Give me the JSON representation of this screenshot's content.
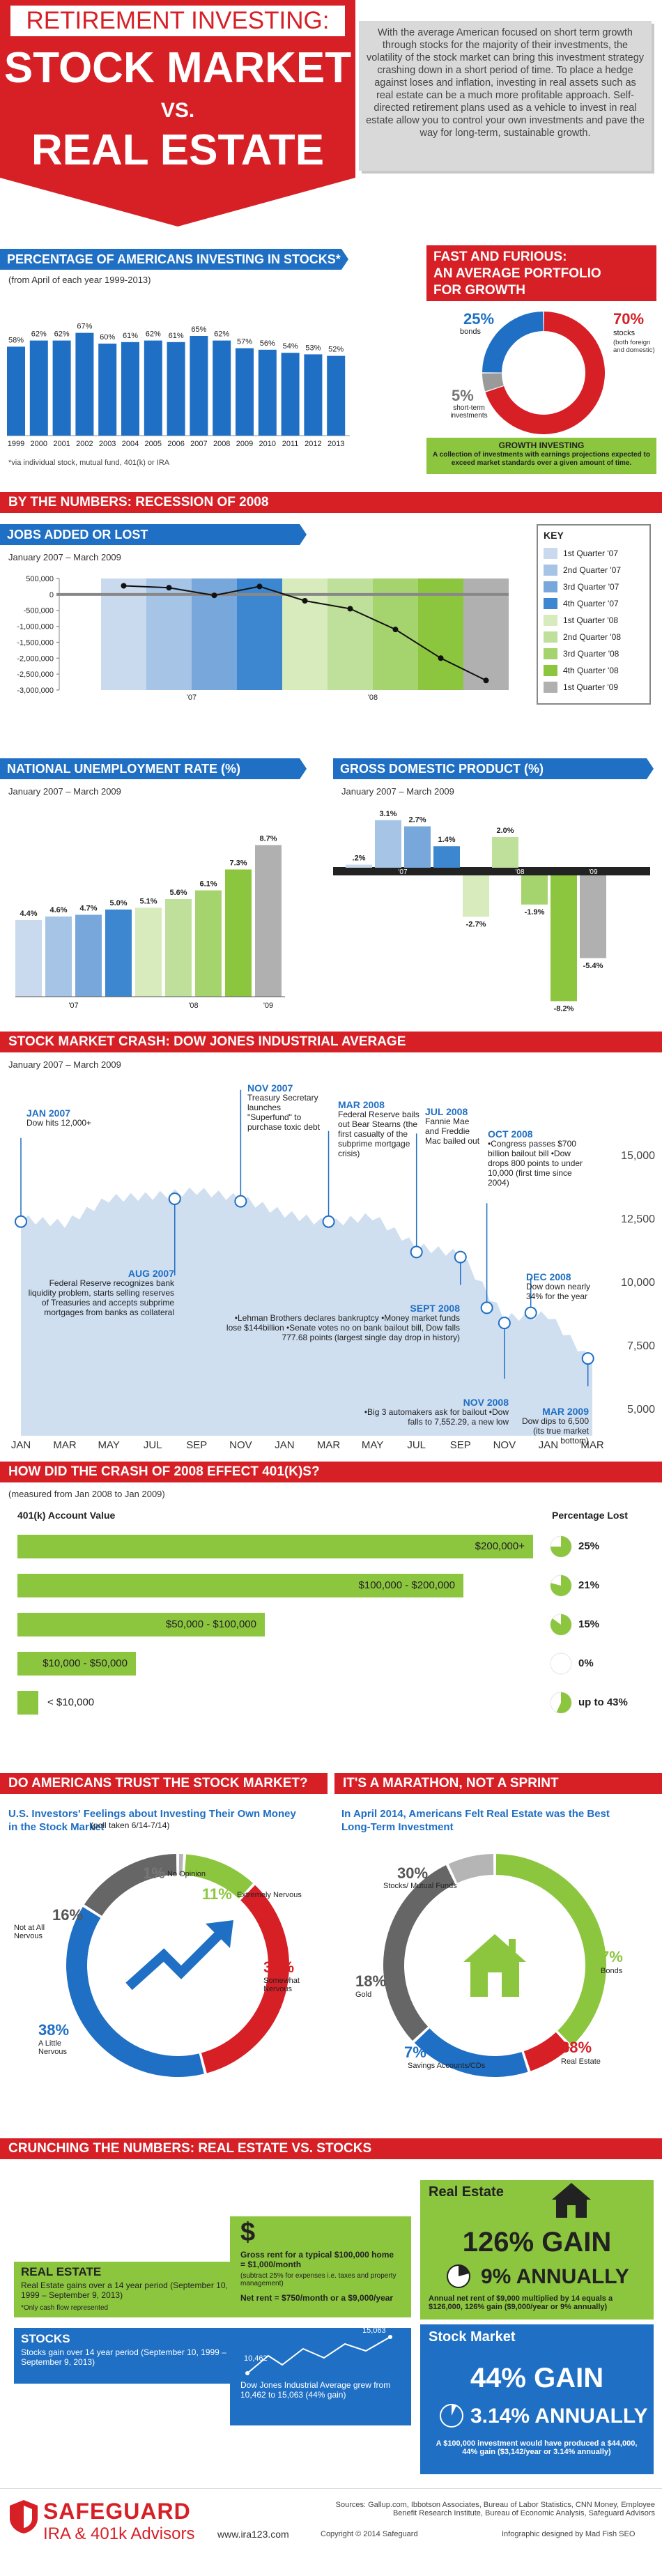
{
  "header": {
    "kicker": "RETIREMENT INVESTING:",
    "title1": "STOCK MARKET",
    "vs": "VS.",
    "title2": "REAL ESTATE",
    "intro": "With the average American focused on short term growth through stocks for the majority of their investments, the volatility of the stock market can bring this investment strategy crashing down in a short period of time. To place a hedge against loses and inflation, investing in real assets such as real estate can be a much more profitable approach. Self-directed retirement plans used as a vehicle to invest in real estate allow you to control your own investments and pave the way for long-term, sustainable growth."
  },
  "colors": {
    "red": "#d71f26",
    "blue": "#1f6fc4",
    "green": "#8cc63f",
    "grey": "#7f7f7f"
  },
  "pct_invest": {
    "title": "PERCENTAGE OF AMERICANS INVESTING IN STOCKS*",
    "note": "(from April of each year 1999-2013)",
    "footnote": "*via individual stock, mutual fund, 401(k) or IRA"
  },
  "fast": {
    "title1": "FAST AND FURIOUS:",
    "title2": "AN AVERAGE PORTFOLIO",
    "title3": "FOR GROWTH",
    "bonds_pct": "25%",
    "bonds_label": "bonds",
    "stocks_pct": "70%",
    "stocks_label": "stocks",
    "stocks_sub": "(both foreign and domestic)",
    "short_pct": "5%",
    "short_label": "short-term investments",
    "growth_title": "GROWTH INVESTING",
    "growth_text": "A collection of investments with earnings projections expected to exceed market standards over a given amount of time."
  },
  "recession": {
    "title": "BY THE NUMBERS: RECESSION OF 2008"
  },
  "jobs": {
    "title": "JOBS ADDED OR LOST",
    "range": "January 2007 – March 2009",
    "key_title": "KEY"
  },
  "key": [
    {
      "label": "1st Quarter '07",
      "color": "#c9d9ee"
    },
    {
      "label": "2nd Quarter '07",
      "color": "#a5c4e6"
    },
    {
      "label": "3rd Quarter '07",
      "color": "#78a8db"
    },
    {
      "label": "4th Quarter '07",
      "color": "#3c87d0"
    },
    {
      "label": "1st Quarter '08",
      "color": "#d7ebbd"
    },
    {
      "label": "2nd Quarter '08",
      "color": "#bfe09a"
    },
    {
      "label": "3rd Quarter '08",
      "color": "#a5d46e"
    },
    {
      "label": "4th Quarter '08",
      "color": "#8cc63f"
    },
    {
      "label": "1st Quarter '09",
      "color": "#b0b0b0"
    }
  ],
  "unemp": {
    "title": "NATIONAL UNEMPLOYMENT RATE (%)",
    "range": "January 2007 – March 2009"
  },
  "gdp": {
    "title": "GROSS DOMESTIC PRODUCT (%)",
    "range": "January 2007 – March 2009"
  },
  "dow": {
    "title": "STOCK MARKET CRASH: DOW JONES INDUSTRIAL AVERAGE",
    "range": "January 2007 – March 2009",
    "events": [
      {
        "date": "JAN 2007",
        "text": "Dow hits 12,000+"
      },
      {
        "date": "AUG 2007",
        "text": "Federal Reserve recognizes bank liquidity problem, starts selling reserves of Treasuries and accepts subprime mortgages from banks as collateral"
      },
      {
        "date": "NOV 2007",
        "text": "Treasury Secretary launches \"Superfund\" to purchase toxic debt"
      },
      {
        "date": "MAR 2008",
        "text": "Federal Reserve bails out Bear Stearns (the first casualty of the subprime mortgage crisis)"
      },
      {
        "date": "JUL 2008",
        "text": "Fannie Mae and Freddie Mac bailed out"
      },
      {
        "date": "SEPT 2008",
        "text": "•Lehman Brothers declares bankruptcy •Money market funds lose $144billion •Senate votes no on bank bailout bill, Dow falls 777.68 points (largest single day drop in history)"
      },
      {
        "date": "OCT 2008",
        "text": "•Congress passes $700 billion bailout bill •Dow drops 800 points to under 10,000 (first time since 2004)"
      },
      {
        "date": "NOV 2008",
        "text": "•Big 3 automakers ask for bailout •Dow falls to 7,552.29, a new low"
      },
      {
        "date": "DEC 2008",
        "text": "Dow down nearly 34% for the year"
      },
      {
        "date": "MAR 2009",
        "text": "Dow dips to 6,500 (its true market bottom)"
      }
    ]
  },
  "k401": {
    "title": "HOW DID THE CRASH OF 2008 EFFECT 401(k)s?",
    "note": "(measured from Jan 2008 to Jan 2009)",
    "col1": "401(k) Account Value",
    "col2": "Percentage Lost",
    "rows": [
      {
        "label": "$200,000+",
        "pct": "25%"
      },
      {
        "label": "$100,000 - $200,000",
        "pct": "21%"
      },
      {
        "label": "$50,000 - $100,000",
        "pct": "15%"
      },
      {
        "label": "$10,000 - $50,000",
        "pct": "0%"
      },
      {
        "label": "< $10,000",
        "pct": "up to 43%"
      }
    ]
  },
  "trust": {
    "title": "DO AMERICANS TRUST THE STOCK MARKET?",
    "subtitle": "U.S. Investors' Feelings about Investing Their Own Money in the Stock Market",
    "poll": "(poll taken 6/14-7/14)",
    "items": [
      {
        "pct": "1%",
        "label": "No Opinion"
      },
      {
        "pct": "11%",
        "label": "Extremely Nervous"
      },
      {
        "pct": "34%",
        "label": "Somewhat Nervous"
      },
      {
        "pct": "38%",
        "label": "A Little Nervous"
      },
      {
        "pct": "16%",
        "label": "Not at All Nervous"
      }
    ]
  },
  "marathon": {
    "title": "IT'S A MARATHON, NOT A SPRINT",
    "subtitle": "In April 2014, Americans Felt Real Estate was the Best Long-Term Investment",
    "items": [
      {
        "pct": "7%",
        "label": "Bonds"
      },
      {
        "pct": "38%",
        "label": "Real Estate"
      },
      {
        "pct": "7%",
        "label": "Savings Accounts/CDs"
      },
      {
        "pct": "18%",
        "label": "Gold"
      },
      {
        "pct": "30%",
        "label": "Stocks/ Mutual Funds"
      }
    ]
  },
  "crunch": {
    "title": "CRUNCHING THE NUMBERS: REAL ESTATE VS. STOCKS",
    "re_title": "REAL ESTATE",
    "re_text": "Real Estate gains over a 14 year period (September 10, 1999 – September 9, 2013)",
    "re_note": "*Only cash flow represented",
    "dollar": "$",
    "rent_text": "Gross rent for a typical $100,000 home = $1,000/month",
    "rent_sub": "(subtract 25% for expenses i.e. taxes and property management)",
    "net_rent": "Net rent = $750/month or a $9,000/year",
    "stocks_title": "STOCKS",
    "stocks_text": "Stocks gain over 14 year period (September 10, 1999 – September 9, 2013)",
    "dow_start": "10,462",
    "dow_end": "15,063",
    "dow_text": "Dow Jones Industrial Average grew from 10,462 to 15,063 (44% gain)",
    "re_box_title": "Real Estate",
    "re_gain": "126% GAIN",
    "re_annual": "9% ANNUALLY",
    "re_box_text": "Annual net rent of $9,000 multiplied by 14 equals a $126,000, 126% gain ($9,000/year or 9% annually)",
    "sm_box_title": "Stock Market",
    "sm_gain": "44% GAIN",
    "sm_annual": "3.14% ANNUALLY",
    "sm_box_text": "A $100,000 investment would have produced a $44,000, 44% gain ($3,142/year or 3.14% annually)"
  },
  "footer": {
    "brand": "SAFEGUARD",
    "brand_sub": "IRA & 401k Advisors",
    "url": "www.ira123.com",
    "sources": "Sources: Gallup.com, Ibbotson Associates, Bureau of Labor Statistics, CNN Money, Employee Benefit Research Institute, Bureau of Economic Analysis, Safeguard Advisors",
    "copyright": "Copyright © 2014 Safeguard",
    "designer": "Infographic designed by Mad Fish SEO"
  },
  "chart_data": [
    {
      "type": "bar",
      "title": "PERCENTAGE OF AMERICANS INVESTING IN STOCKS*",
      "categories": [
        "1999",
        "2000",
        "2001",
        "2002",
        "2003",
        "2004",
        "2005",
        "2006",
        "2007",
        "2008",
        "2009",
        "2010",
        "2011",
        "2012",
        "2013"
      ],
      "values": [
        58,
        62,
        62,
        67,
        60,
        61,
        62,
        61,
        65,
        62,
        57,
        56,
        54,
        53,
        52
      ],
      "value_labels": [
        "58%",
        "62%",
        "62%",
        "67%",
        "60%",
        "61%",
        "62%",
        "61%",
        "65%",
        "62%",
        "57%",
        "56%",
        "54%",
        "53%",
        "52%"
      ],
      "ylim": [
        0,
        75
      ]
    },
    {
      "type": "pie",
      "title": "AN AVERAGE PORTFOLIO FOR GROWTH",
      "categories": [
        "stocks",
        "bonds",
        "short-term investments"
      ],
      "values": [
        70,
        25,
        5
      ]
    },
    {
      "type": "line",
      "title": "JOBS ADDED OR LOST",
      "x": [
        "1st Quarter '07",
        "2nd Quarter '07",
        "3rd Quarter '07",
        "4th Quarter '07",
        "1st Quarter '08",
        "2nd Quarter '08",
        "3rd Quarter '08",
        "4th Quarter '08",
        "1st Quarter '09"
      ],
      "values": [
        270000,
        210000,
        -30000,
        250000,
        -200000,
        -450000,
        -1100000,
        -2000000,
        -2700000
      ],
      "yticks": [
        "500,000",
        "0",
        "-500,000",
        "-1,000,000",
        "-1,500,000",
        "-2,000,000",
        "-2,500,000",
        "-3,000,000"
      ],
      "ylim": [
        -3000000,
        500000
      ],
      "xgroups": [
        "'07",
        "'08"
      ]
    },
    {
      "type": "bar",
      "title": "NATIONAL UNEMPLOYMENT RATE (%)",
      "categories": [
        "1st Quarter '07",
        "2nd Quarter '07",
        "3rd Quarter '07",
        "4th Quarter '07",
        "1st Quarter '08",
        "2nd Quarter '08",
        "3rd Quarter '08",
        "4th Quarter '08",
        "1st Quarter '09"
      ],
      "values": [
        4.4,
        4.6,
        4.7,
        5.0,
        5.1,
        5.6,
        6.1,
        7.3,
        8.7
      ],
      "value_labels": [
        "4.4%",
        "4.6%",
        "4.7%",
        "5.0%",
        "5.1%",
        "5.6%",
        "6.1%",
        "7.3%",
        "8.7%"
      ],
      "xgroups": [
        "'07",
        "'08",
        "'09"
      ],
      "ylim": [
        0,
        9
      ]
    },
    {
      "type": "bar",
      "title": "GROSS DOMESTIC PRODUCT (%)",
      "categories": [
        "1st Quarter '07",
        "2nd Quarter '07",
        "3rd Quarter '07",
        "4th Quarter '07",
        "1st Quarter '08",
        "2nd Quarter '08",
        "3rd Quarter '08",
        "4th Quarter '08",
        "1st Quarter '09"
      ],
      "values": [
        0.2,
        3.1,
        2.7,
        1.4,
        -2.7,
        2.0,
        -1.9,
        -8.2,
        -5.4
      ],
      "value_labels": [
        ".2%",
        "3.1%",
        "2.7%",
        "1.4%",
        "-2.7%",
        "2.0%",
        "-1.9%",
        "-8.2%",
        "-5.4%"
      ],
      "xgroups": [
        "'07",
        "'08",
        "'09"
      ],
      "ylim": [
        -9,
        4
      ]
    },
    {
      "type": "area",
      "title": "STOCK MARKET CRASH: DOW JONES INDUSTRIAL AVERAGE",
      "x": [
        "JAN '07",
        "MAR '07",
        "MAY '07",
        "JUL '07",
        "SEP '07",
        "NOV '07",
        "JAN '08",
        "MAR '08",
        "MAY '08",
        "JUL '08",
        "SEP '08",
        "NOV '08",
        "JAN '09",
        "MAR '09"
      ],
      "values": [
        12500,
        12300,
        13300,
        13400,
        13600,
        13300,
        12700,
        12300,
        12600,
        11400,
        11100,
        8600,
        8700,
        6800
      ],
      "yticks": [
        "15,000",
        "12,500",
        "10,000",
        "7,500",
        "5,000"
      ],
      "ylim": [
        4500,
        15500
      ]
    },
    {
      "type": "bar",
      "title": "HOW DID THE CRASH OF 2008 EFFECT 401(k)s?",
      "categories": [
        "$200,000+",
        "$100,000 - $200,000",
        "$50,000 - $100,000",
        "$10,000 - $50,000",
        "< $10,000"
      ],
      "values": [
        25,
        21,
        15,
        0,
        43
      ],
      "value_labels": [
        "25%",
        "21%",
        "15%",
        "0%",
        "up to 43%"
      ]
    },
    {
      "type": "pie",
      "title": "U.S. Investors' Feelings about Investing Their Own Money in the Stock Market",
      "categories": [
        "No Opinion",
        "Extremely Nervous",
        "Somewhat Nervous",
        "A Little Nervous",
        "Not at All Nervous"
      ],
      "values": [
        1,
        11,
        34,
        38,
        16
      ]
    },
    {
      "type": "pie",
      "title": "In April 2014, Americans Felt Real Estate was the Best Long-Term Investment",
      "categories": [
        "Real Estate",
        "Savings Accounts/CDs",
        "Gold",
        "Stocks/ Mutual Funds",
        "Bonds"
      ],
      "values": [
        38,
        7,
        18,
        30,
        7
      ]
    }
  ]
}
